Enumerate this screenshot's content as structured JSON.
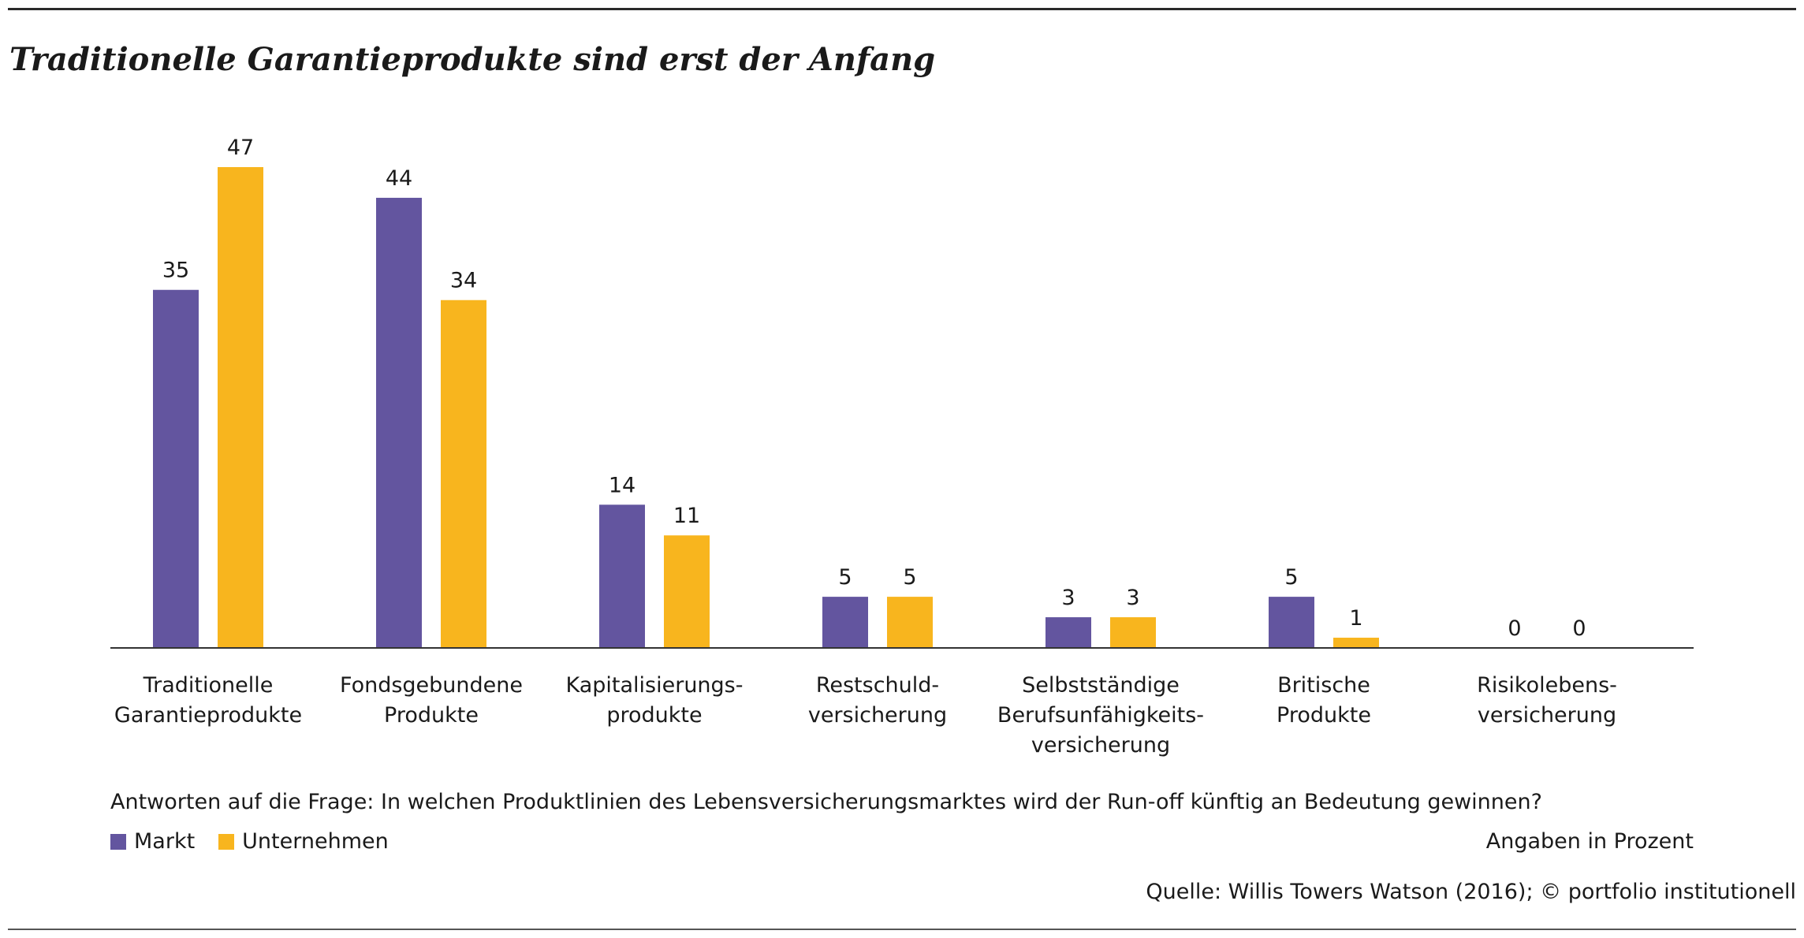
{
  "title": "Traditionelle Garantieprodukte sind erst der Anfang",
  "chart_data": {
    "type": "bar",
    "categories": [
      [
        "Traditionelle",
        "Garantieprodukte"
      ],
      [
        "Fondsgebundene",
        "Produkte"
      ],
      [
        "Kapitalisierungs-",
        "produkte"
      ],
      [
        "Restschuld-",
        "versicherung"
      ],
      [
        "Selbstständige",
        "Berufsunfähigkeits-",
        "versicherung"
      ],
      [
        "Britische",
        "Produkte"
      ],
      [
        "Risikolebens-",
        "versicherung"
      ]
    ],
    "series": [
      {
        "name": "Markt",
        "color": "#63559f",
        "values": [
          35,
          44,
          14,
          5,
          3,
          5,
          0
        ]
      },
      {
        "name": "Unternehmen",
        "color": "#f8b51e",
        "values": [
          47,
          34,
          11,
          5,
          3,
          1,
          0
        ]
      }
    ],
    "ylim": [
      0,
      47
    ],
    "data_labels": true,
    "grid": false,
    "legend_position": "bottom-left"
  },
  "question": "Antworten auf die Frage: In welchen Produktlinien des Lebensversicherungsmarktes wird der Run-off künftig an Bedeutung gewinnen?",
  "legend": {
    "markt": "Markt",
    "unternehmen": "Unternehmen"
  },
  "unit_note": "Angaben in Prozent",
  "source": "Quelle: Willis Towers Watson (2016); © portfolio institutionell"
}
